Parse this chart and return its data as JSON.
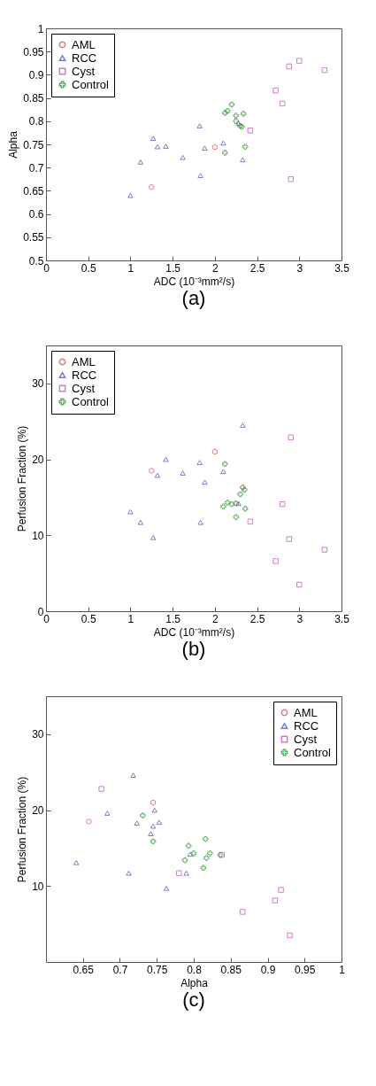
{
  "chart_data": [
    {
      "type": "scatter",
      "title": "(a)",
      "xlabel": "ADC (10⁻³mm²/s)",
      "ylabel": "Alpha",
      "xlim": [
        0,
        3.5
      ],
      "xticks": [
        0,
        0.5,
        1,
        1.5,
        2,
        2.5,
        3,
        3.5
      ],
      "ylim": [
        0.5,
        1
      ],
      "yticks": [
        0.5,
        0.55,
        0.6,
        0.65,
        0.7,
        0.75,
        0.8,
        0.85,
        0.9,
        0.95,
        1
      ],
      "legend": "top left",
      "grid": false,
      "series": [
        {
          "name": "AML",
          "color": "#cc4444",
          "marker": "circle",
          "x": [
            1.25,
            2.0
          ],
          "values": [
            0.658,
            0.744
          ]
        },
        {
          "name": "RCC",
          "color": "#4646aa",
          "marker": "triangle",
          "x": [
            1.0,
            1.12,
            1.27,
            1.32,
            1.42,
            1.62,
            1.82,
            1.83,
            1.88,
            2.1,
            2.28,
            2.33
          ],
          "values": [
            0.64,
            0.712,
            0.763,
            0.745,
            0.746,
            0.722,
            0.79,
            0.683,
            0.742,
            0.753,
            0.796,
            0.717
          ]
        },
        {
          "name": "Cyst",
          "color": "#bb44bb",
          "marker": "square",
          "x": [
            2.42,
            2.72,
            2.8,
            2.88,
            2.9,
            3.0,
            3.3
          ],
          "values": [
            0.78,
            0.866,
            0.838,
            0.918,
            0.675,
            0.93,
            0.91
          ]
        },
        {
          "name": "Control",
          "color": "#228822",
          "marker": "cross",
          "x": [
            2.12,
            2.15,
            2.2,
            2.25,
            2.3,
            2.32,
            2.34,
            2.36,
            2.12,
            2.25
          ],
          "values": [
            0.818,
            0.822,
            0.836,
            0.812,
            0.79,
            0.788,
            0.816,
            0.745,
            0.732,
            0.8
          ]
        }
      ]
    },
    {
      "type": "scatter",
      "title": "(b)",
      "xlabel": "ADC (10⁻³mm²/s)",
      "ylabel": "Perfusion Fraction (%)",
      "xlim": [
        0,
        3.5
      ],
      "xticks": [
        0,
        0.5,
        1,
        1.5,
        2,
        2.5,
        3,
        3.5
      ],
      "ylim": [
        0,
        35
      ],
      "yticks": [
        0,
        10,
        20,
        30
      ],
      "legend": "top left",
      "grid": false,
      "series": [
        {
          "name": "AML",
          "color": "#cc4444",
          "marker": "circle",
          "x": [
            1.25,
            2.0
          ],
          "values": [
            18.5,
            21.0
          ]
        },
        {
          "name": "RCC",
          "color": "#4646aa",
          "marker": "triangle",
          "x": [
            1.0,
            1.12,
            1.27,
            1.32,
            1.42,
            1.62,
            1.82,
            1.83,
            1.88,
            2.1,
            2.28,
            2.33
          ],
          "values": [
            13.1,
            11.7,
            9.7,
            17.9,
            20.0,
            18.2,
            19.6,
            11.7,
            17.0,
            18.4,
            14.2,
            24.5
          ]
        },
        {
          "name": "Cyst",
          "color": "#bb44bb",
          "marker": "square",
          "x": [
            2.42,
            2.72,
            2.8,
            2.88,
            2.9,
            3.0,
            3.3
          ],
          "values": [
            11.8,
            6.6,
            14.1,
            9.5,
            22.9,
            3.5,
            8.1
          ]
        },
        {
          "name": "Control",
          "color": "#228822",
          "marker": "cross",
          "x": [
            2.12,
            2.1,
            2.15,
            2.2,
            2.25,
            2.3,
            2.33,
            2.35,
            2.36,
            2.25
          ],
          "values": [
            19.4,
            13.8,
            14.3,
            14.1,
            12.4,
            15.4,
            16.3,
            16.0,
            13.5,
            14.2
          ]
        }
      ]
    },
    {
      "type": "scatter",
      "title": "(c)",
      "xlabel": "Alpha",
      "ylabel": "Perfusion Fraction (%)",
      "xlim": [
        0.6,
        1
      ],
      "xticks": [
        0.65,
        0.7,
        0.75,
        0.8,
        0.85,
        0.9,
        0.95,
        1
      ],
      "ylim": [
        0,
        35
      ],
      "yticks": [
        10,
        20,
        30
      ],
      "legend": "top right",
      "grid": false,
      "series": [
        {
          "name": "AML",
          "color": "#cc4444",
          "marker": "circle",
          "x": [
            0.658,
            0.745
          ],
          "values": [
            18.5,
            21.0
          ]
        },
        {
          "name": "RCC",
          "color": "#4646aa",
          "marker": "triangle",
          "x": [
            0.718,
            0.683,
            0.747,
            0.723,
            0.745,
            0.753,
            0.742,
            0.641,
            0.712,
            0.795,
            0.79,
            0.763
          ],
          "values": [
            24.6,
            19.6,
            20.0,
            18.3,
            17.9,
            18.4,
            16.9,
            13.1,
            11.7,
            14.2,
            11.7,
            9.7
          ]
        },
        {
          "name": "Cyst",
          "color": "#bb44bb",
          "marker": "square",
          "x": [
            0.675,
            0.838,
            0.78,
            0.866,
            0.91,
            0.918,
            0.93
          ],
          "values": [
            22.8,
            14.1,
            11.7,
            6.6,
            8.1,
            9.5,
            3.5
          ]
        },
        {
          "name": "Control",
          "color": "#228822",
          "marker": "cross",
          "x": [
            0.731,
            0.745,
            0.816,
            0.793,
            0.8,
            0.822,
            0.817,
            0.788,
            0.813,
            0.836
          ],
          "values": [
            19.3,
            15.9,
            16.2,
            15.3,
            14.3,
            14.3,
            13.7,
            13.4,
            12.4,
            14.1
          ]
        }
      ]
    }
  ]
}
